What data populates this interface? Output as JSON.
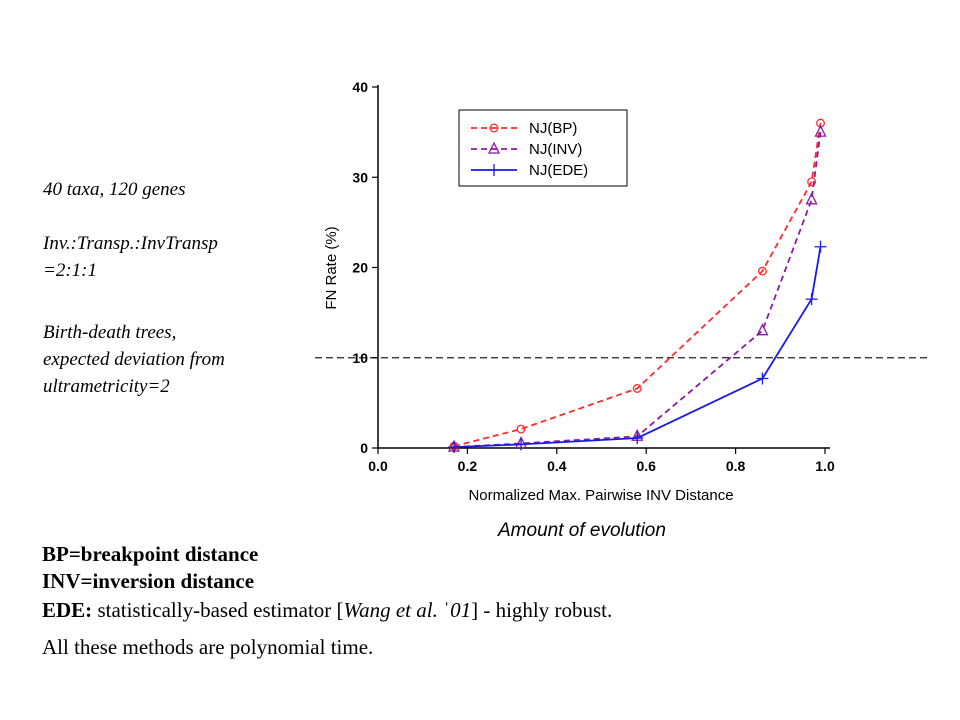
{
  "side_notes": {
    "line1": "40 taxa, 120 genes",
    "line2a": "Inv.:Transp.:InvTransp",
    "line2b": "=2:1:1",
    "line3a": "Birth-death trees,",
    "line3b": "expected deviation from",
    "line3c": "ultrametricity=2"
  },
  "caption": "Amount of evolution",
  "bottom": {
    "bp": "BP=breakpoint distance",
    "inv": "INV=inversion distance",
    "ede_label": "EDE:",
    "ede_text": " statistically-based estimator [",
    "ede_cite": "Wang et al. ˈ01",
    "ede_tail": "] - highly robust.",
    "poly": "All these methods are polynomial time."
  },
  "chart_data": {
    "type": "line",
    "xlabel": "Normalized Max. Pairwise INV Distance",
    "ylabel": "FN Rate (%)",
    "xlim": [
      0.0,
      1.0
    ],
    "ylim": [
      0,
      40
    ],
    "xticks": [
      "0.0",
      "0.2",
      "0.4",
      "0.6",
      "0.8",
      "1.0"
    ],
    "yticks": [
      "0",
      "10",
      "20",
      "30",
      "40"
    ],
    "legend_position": "top-right",
    "reference_line_y": 10,
    "series": [
      {
        "name": "NJ(BP)",
        "color": "#ff2a2a",
        "dash": "dashed",
        "marker": "circle",
        "x": [
          0.17,
          0.32,
          0.58,
          0.86,
          0.97,
          0.99
        ],
        "y": [
          0.2,
          2.1,
          6.6,
          19.6,
          29.5,
          36.0
        ]
      },
      {
        "name": "NJ(INV)",
        "color": "#8b1aa5",
        "dash": "dashed",
        "marker": "triangle",
        "x": [
          0.17,
          0.32,
          0.58,
          0.86,
          0.97,
          0.99
        ],
        "y": [
          0.1,
          0.5,
          1.3,
          13.0,
          27.5,
          35.0
        ]
      },
      {
        "name": "NJ(EDE)",
        "color": "#1a1ae6",
        "dash": "solid",
        "marker": "plus",
        "x": [
          0.17,
          0.32,
          0.58,
          0.86,
          0.97,
          0.99
        ],
        "y": [
          0.1,
          0.4,
          1.1,
          7.7,
          16.5,
          22.3
        ]
      }
    ]
  }
}
